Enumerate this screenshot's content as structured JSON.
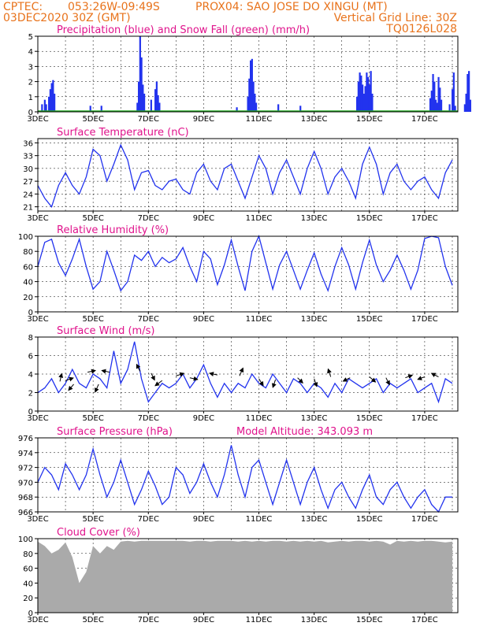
{
  "header": {
    "left1": "CPTEC:",
    "coords": "053:26W-09:49S",
    "location": "PROX04: SAO JOSE DO XINGU (MT)",
    "date": "03DEC2020 30Z (GMT)",
    "vgrid": "Vertical Grid Line: 30Z",
    "run": "TQ0126L028"
  },
  "x_labels": [
    "3DEC",
    "5DEC",
    "7DEC",
    "9DEC",
    "11DEC",
    "13DEC",
    "15DEC",
    "17DEC"
  ],
  "x_label_days": [
    0,
    2,
    4,
    6,
    8,
    10,
    12,
    14
  ],
  "chart_data": [
    {
      "type": "bar",
      "title": "Precipitation (blue) and Snow Fall (green) (mm/h)",
      "ylim": [
        0,
        5
      ],
      "yticks": [
        0,
        1,
        2,
        3,
        4,
        5
      ],
      "series": [
        {
          "name": "Precipitation",
          "color": "#2233ee",
          "x": [
            0.15,
            0.25,
            0.3,
            0.4,
            0.45,
            0.5,
            0.55,
            0.6,
            1.9,
            2.3,
            3.6,
            3.65,
            3.7,
            3.75,
            3.8,
            3.85,
            4.1,
            4.25,
            4.3,
            4.35,
            4.4,
            7.2,
            7.6,
            7.65,
            7.7,
            7.75,
            7.8,
            7.85,
            7.9,
            8.7,
            9.5,
            11.55,
            11.6,
            11.65,
            11.7,
            11.75,
            11.8,
            11.85,
            11.9,
            11.95,
            12.0,
            12.05,
            12.1,
            14.2,
            14.25,
            14.3,
            14.35,
            14.4,
            14.45,
            14.5,
            14.55,
            14.6,
            14.9,
            15.0,
            15.05,
            15.1,
            15.45,
            15.5,
            15.55,
            15.6,
            15.65
          ],
          "values": [
            0.5,
            0.8,
            0.5,
            1.0,
            1.5,
            1.9,
            2.1,
            1.2,
            0.4,
            0.4,
            0.6,
            2.0,
            5.0,
            3.6,
            1.8,
            1.2,
            0.8,
            1.5,
            2.0,
            1.1,
            0.6,
            0.3,
            1.0,
            2.2,
            3.4,
            3.5,
            2.0,
            1.2,
            0.6,
            0.5,
            0.4,
            1.0,
            2.0,
            2.6,
            2.4,
            1.8,
            1.2,
            1.7,
            2.6,
            2.3,
            1.8,
            2.7,
            1.2,
            0.9,
            1.4,
            2.5,
            2.0,
            0.8,
            0.6,
            2.3,
            1.6,
            0.8,
            0.5,
            1.5,
            2.6,
            0.4,
            0.5,
            1.2,
            2.5,
            2.7,
            0.8
          ]
        },
        {
          "name": "Snow Fall",
          "color": "#22aa22",
          "x": [],
          "values": []
        }
      ]
    },
    {
      "type": "line",
      "title": "Surface Temperature (nC)",
      "ylim": [
        20,
        37
      ],
      "yticks": [
        21,
        24,
        27,
        30,
        33,
        36
      ],
      "x": [
        0,
        0.25,
        0.5,
        0.75,
        1.0,
        1.25,
        1.5,
        1.75,
        2.0,
        2.25,
        2.5,
        2.75,
        3.0,
        3.25,
        3.5,
        3.75,
        4.0,
        4.25,
        4.5,
        4.75,
        5.0,
        5.25,
        5.5,
        5.75,
        6.0,
        6.25,
        6.5,
        6.75,
        7.0,
        7.25,
        7.5,
        7.75,
        8.0,
        8.25,
        8.5,
        8.75,
        9.0,
        9.25,
        9.5,
        9.75,
        10.0,
        10.25,
        10.5,
        10.75,
        11.0,
        11.25,
        11.5,
        11.75,
        12.0,
        12.25,
        12.5,
        12.75,
        13.0,
        13.25,
        13.5,
        13.75,
        14.0,
        14.25,
        14.5,
        14.75,
        15.0
      ],
      "values": [
        26,
        23,
        21,
        26,
        29,
        26,
        24,
        28,
        34.5,
        33,
        27,
        31,
        35.5,
        32,
        25,
        29,
        29.5,
        26,
        25,
        27,
        27.5,
        25,
        24,
        29,
        31,
        27,
        25,
        30,
        31,
        27,
        23,
        28,
        33,
        30,
        24,
        29,
        32,
        28,
        24,
        30,
        34,
        30,
        24,
        28,
        30,
        27,
        23,
        31,
        35,
        31,
        24,
        29,
        31,
        27,
        25,
        27,
        28,
        25,
        23,
        29,
        32
      ]
    },
    {
      "type": "line",
      "title": "Relative Humidity (%)",
      "ylim": [
        0,
        100
      ],
      "yticks": [
        0,
        20,
        40,
        60,
        80,
        100
      ],
      "x": [
        0,
        0.25,
        0.5,
        0.75,
        1.0,
        1.25,
        1.5,
        1.75,
        2.0,
        2.25,
        2.5,
        2.75,
        3.0,
        3.25,
        3.5,
        3.75,
        4.0,
        4.25,
        4.5,
        4.75,
        5.0,
        5.25,
        5.5,
        5.75,
        6.0,
        6.25,
        6.5,
        6.75,
        7.0,
        7.25,
        7.5,
        7.75,
        8.0,
        8.25,
        8.5,
        8.75,
        9.0,
        9.25,
        9.5,
        9.75,
        10.0,
        10.25,
        10.5,
        10.75,
        11.0,
        11.25,
        11.5,
        11.75,
        12.0,
        12.25,
        12.5,
        12.75,
        13.0,
        13.25,
        13.5,
        13.75,
        14.0,
        14.25,
        14.5,
        14.75,
        15.0
      ],
      "values": [
        60,
        92,
        96,
        65,
        48,
        70,
        96,
        60,
        30,
        40,
        80,
        55,
        28,
        40,
        75,
        68,
        80,
        60,
        72,
        65,
        70,
        85,
        60,
        40,
        80,
        70,
        36,
        62,
        95,
        60,
        28,
        80,
        100,
        65,
        30,
        62,
        80,
        55,
        30,
        55,
        78,
        50,
        28,
        60,
        85,
        62,
        30,
        65,
        95,
        62,
        40,
        55,
        75,
        55,
        30,
        55,
        97,
        100,
        98,
        60,
        35
      ]
    },
    {
      "type": "line",
      "title": "Surface Wind (m/s)",
      "ylim": [
        0,
        8
      ],
      "yticks": [
        0,
        2,
        4,
        6,
        8
      ],
      "x": [
        0,
        0.25,
        0.5,
        0.75,
        1.0,
        1.25,
        1.5,
        1.75,
        2.0,
        2.25,
        2.5,
        2.75,
        3.0,
        3.25,
        3.5,
        3.75,
        4.0,
        4.25,
        4.5,
        4.75,
        5.0,
        5.25,
        5.5,
        5.75,
        6.0,
        6.25,
        6.5,
        6.75,
        7.0,
        7.25,
        7.5,
        7.75,
        8.0,
        8.25,
        8.5,
        8.75,
        9.0,
        9.25,
        9.5,
        9.75,
        10.0,
        10.25,
        10.5,
        10.75,
        11.0,
        11.25,
        11.5,
        11.75,
        12.0,
        12.25,
        12.5,
        12.75,
        13.0,
        13.25,
        13.5,
        13.75,
        14.0,
        14.25,
        14.5,
        14.75,
        15.0
      ],
      "values": [
        2,
        2.5,
        3.5,
        2,
        3,
        4.5,
        3,
        2.5,
        4,
        3.5,
        2.5,
        6.5,
        3,
        4.5,
        7.5,
        3.5,
        1,
        2,
        3,
        2.5,
        3,
        4,
        2.5,
        3.5,
        5,
        3,
        1.5,
        3,
        2,
        3,
        2.5,
        4,
        3,
        2.5,
        4,
        3,
        2,
        3.5,
        3,
        2,
        3,
        2.5,
        1.5,
        3,
        2,
        3.5,
        3,
        2.5,
        3,
        3.5,
        2,
        3,
        2.5,
        3,
        3.5,
        2,
        2.5,
        3,
        1,
        3.5,
        3
      ],
      "arrows": [
        {
          "x": 0.8,
          "y": 3.2,
          "u": 0.2,
          "v": 0.9
        },
        {
          "x": 1.0,
          "y": 3.3,
          "u": 0.9,
          "v": 0.3
        },
        {
          "x": 1.3,
          "y": 2.9,
          "u": -0.6,
          "v": -0.7
        },
        {
          "x": 1.8,
          "y": 4.2,
          "u": 0.9,
          "v": 0.2
        },
        {
          "x": 2.2,
          "y": 2.9,
          "u": -0.4,
          "v": -0.9
        },
        {
          "x": 2.6,
          "y": 4.2,
          "u": -0.9,
          "v": 0.2
        },
        {
          "x": 3.7,
          "y": 4.3,
          "u": -0.4,
          "v": 0.8
        },
        {
          "x": 4.1,
          "y": 4.1,
          "u": 0.4,
          "v": -0.8
        },
        {
          "x": 4.5,
          "y": 3.3,
          "u": -0.8,
          "v": -0.6
        },
        {
          "x": 5.0,
          "y": 3.8,
          "u": 0.9,
          "v": 0.3
        },
        {
          "x": 5.5,
          "y": 3.6,
          "u": 0.9,
          "v": -0.2
        },
        {
          "x": 6.5,
          "y": 3.9,
          "u": -0.9,
          "v": 0.2
        },
        {
          "x": 7.3,
          "y": 3.8,
          "u": 0.4,
          "v": 0.9
        },
        {
          "x": 8.0,
          "y": 3.5,
          "u": 0.5,
          "v": -0.8
        },
        {
          "x": 8.6,
          "y": 3.4,
          "u": -0.3,
          "v": -0.9
        },
        {
          "x": 9.4,
          "y": 3.6,
          "u": 0.6,
          "v": -0.6
        },
        {
          "x": 10.0,
          "y": 3.5,
          "u": 0.3,
          "v": -0.9
        },
        {
          "x": 10.6,
          "y": 3.7,
          "u": -0.3,
          "v": 0.9
        },
        {
          "x": 11.3,
          "y": 3.6,
          "u": -0.8,
          "v": -0.4
        },
        {
          "x": 12.0,
          "y": 3.7,
          "u": 0.7,
          "v": -0.6
        },
        {
          "x": 12.6,
          "y": 3.6,
          "u": 0.4,
          "v": -0.8
        },
        {
          "x": 13.3,
          "y": 3.6,
          "u": 0.8,
          "v": 0.3
        },
        {
          "x": 14.0,
          "y": 3.7,
          "u": -0.8,
          "v": -0.3
        },
        {
          "x": 14.5,
          "y": 3.7,
          "u": -0.8,
          "v": 0.4
        }
      ]
    },
    {
      "type": "line",
      "title": "Surface Pressure (hPa)",
      "annotation": "Model Altitude: 343.093 m",
      "ylim": [
        966,
        976
      ],
      "yticks": [
        966,
        968,
        970,
        972,
        974,
        976
      ],
      "x": [
        0,
        0.25,
        0.5,
        0.75,
        1.0,
        1.25,
        1.5,
        1.75,
        2.0,
        2.25,
        2.5,
        2.75,
        3.0,
        3.25,
        3.5,
        3.75,
        4.0,
        4.25,
        4.5,
        4.75,
        5.0,
        5.25,
        5.5,
        5.75,
        6.0,
        6.25,
        6.5,
        6.75,
        7.0,
        7.25,
        7.5,
        7.75,
        8.0,
        8.25,
        8.5,
        8.75,
        9.0,
        9.25,
        9.5,
        9.75,
        10.0,
        10.25,
        10.5,
        10.75,
        11.0,
        11.25,
        11.5,
        11.75,
        12.0,
        12.25,
        12.5,
        12.75,
        13.0,
        13.25,
        13.5,
        13.75,
        14.0,
        14.25,
        14.5,
        14.75,
        15.0
      ],
      "values": [
        970,
        972,
        971,
        969,
        972.5,
        971,
        969,
        971,
        974.5,
        971,
        968,
        970,
        973,
        970,
        967,
        969,
        971.5,
        969.5,
        967,
        968,
        972,
        971,
        968.5,
        970,
        972.5,
        970,
        968,
        971,
        975,
        971,
        968,
        972,
        973,
        970,
        967,
        970,
        973,
        970,
        967,
        970,
        972,
        969,
        966.5,
        969,
        970,
        968,
        966.5,
        969,
        971,
        968,
        967,
        969,
        970,
        968,
        966.5,
        968,
        969,
        967,
        966,
        968,
        968
      ]
    },
    {
      "type": "area",
      "title": "Cloud Cover (%)",
      "ylim": [
        0,
        100
      ],
      "yticks": [
        0,
        20,
        40,
        60,
        80,
        100
      ],
      "x": [
        0,
        0.25,
        0.5,
        0.75,
        1.0,
        1.25,
        1.5,
        1.75,
        2.0,
        2.25,
        2.5,
        2.75,
        3.0,
        3.25,
        3.5,
        3.75,
        4.0,
        4.25,
        4.5,
        4.75,
        5.0,
        5.25,
        5.5,
        5.75,
        6.0,
        6.25,
        6.5,
        6.75,
        7.0,
        7.25,
        7.5,
        7.75,
        8.0,
        8.25,
        8.5,
        8.75,
        9.0,
        9.25,
        9.5,
        9.75,
        10.0,
        10.25,
        10.5,
        10.75,
        11.0,
        11.25,
        11.5,
        11.75,
        12.0,
        12.25,
        12.5,
        12.75,
        13.0,
        13.25,
        13.5,
        13.75,
        14.0,
        14.25,
        14.5,
        14.75,
        15.0
      ],
      "values": [
        96,
        90,
        80,
        85,
        95,
        75,
        40,
        55,
        90,
        80,
        90,
        85,
        96,
        97,
        96,
        97,
        97,
        97,
        97,
        97,
        97,
        97,
        96,
        97,
        97,
        96,
        97,
        97,
        97,
        96,
        97,
        96,
        97,
        96,
        97,
        97,
        96,
        97,
        96,
        97,
        96,
        97,
        95,
        96,
        97,
        96,
        97,
        97,
        96,
        97,
        96,
        92,
        97,
        96,
        97,
        96,
        97,
        97,
        96,
        95,
        96
      ]
    }
  ]
}
